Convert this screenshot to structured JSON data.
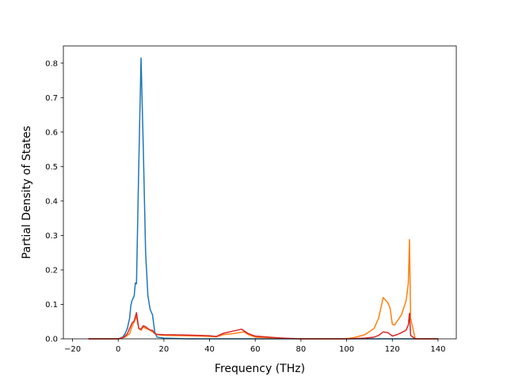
{
  "chart_data": {
    "type": "line",
    "title": "",
    "xlabel": "Frequency (THz)",
    "ylabel": "Partial Density of States",
    "xlim": [
      -24,
      148
    ],
    "ylim": [
      0,
      0.85
    ],
    "xticks": [
      -20,
      0,
      20,
      40,
      60,
      80,
      100,
      120,
      140
    ],
    "yticks": [
      0.0,
      0.1,
      0.2,
      0.3,
      0.4,
      0.5,
      0.6,
      0.7,
      0.8
    ],
    "xtick_labels": [
      "−20",
      "0",
      "20",
      "40",
      "60",
      "80",
      "100",
      "120",
      "140"
    ],
    "ytick_labels": [
      "0.0",
      "0.1",
      "0.2",
      "0.3",
      "0.4",
      "0.5",
      "0.6",
      "0.7",
      "0.8"
    ],
    "grid": false,
    "legend": false,
    "series": [
      {
        "color": "#1f77b4",
        "x": [
          -13,
          0,
          2,
          3,
          4,
          5,
          5.5,
          6,
          7,
          7.5,
          8,
          9,
          10,
          11,
          12,
          13,
          14,
          15,
          16,
          17,
          20,
          25,
          30,
          140
        ],
        "y": [
          0,
          0,
          0.005,
          0.015,
          0.03,
          0.06,
          0.095,
          0.11,
          0.125,
          0.162,
          0.16,
          0.5,
          0.815,
          0.55,
          0.25,
          0.125,
          0.085,
          0.07,
          0.02,
          0.005,
          0.002,
          0.001,
          0,
          0
        ]
      },
      {
        "color": "#ff7f0e",
        "x": [
          -13,
          0,
          3,
          5,
          6,
          8,
          9,
          10,
          11,
          12,
          13,
          14,
          15,
          17,
          20,
          30,
          40,
          43,
          46,
          50,
          55,
          57,
          60,
          70,
          75,
          80,
          100,
          104,
          108,
          112,
          114,
          116,
          118,
          119,
          120,
          121,
          122,
          124,
          126,
          127,
          127.5,
          128,
          130,
          140
        ],
        "y": [
          0,
          0,
          0.005,
          0.015,
          0.035,
          0.065,
          0.03,
          0.025,
          0.035,
          0.03,
          0.028,
          0.025,
          0.02,
          0.012,
          0.01,
          0.009,
          0.007,
          0.006,
          0.012,
          0.015,
          0.02,
          0.012,
          0.005,
          0.002,
          0.001,
          0,
          0,
          0.005,
          0.012,
          0.03,
          0.06,
          0.12,
          0.105,
          0.09,
          0.042,
          0.04,
          0.05,
          0.07,
          0.11,
          0.16,
          0.288,
          0.06,
          0,
          0
        ]
      },
      {
        "color": "#d62728",
        "x": [
          -13,
          0,
          2,
          3,
          4,
          5,
          6,
          7,
          8,
          9,
          10,
          11,
          12,
          13,
          14,
          15,
          16,
          17,
          20,
          30,
          40,
          43,
          46,
          50,
          54,
          57,
          60,
          70,
          75,
          80,
          100,
          108,
          112,
          114,
          116,
          118,
          120,
          122,
          124,
          126,
          127,
          127.5,
          128,
          130,
          140
        ],
        "y": [
          0,
          0,
          0.003,
          0.008,
          0.015,
          0.03,
          0.045,
          0.052,
          0.076,
          0.03,
          0.028,
          0.038,
          0.035,
          0.03,
          0.025,
          0.025,
          0.015,
          0.013,
          0.012,
          0.011,
          0.009,
          0.007,
          0.016,
          0.022,
          0.028,
          0.015,
          0.008,
          0.003,
          0.001,
          0,
          0,
          0.002,
          0.005,
          0.01,
          0.02,
          0.018,
          0.008,
          0.012,
          0.018,
          0.025,
          0.04,
          0.074,
          0.01,
          0,
          0
        ]
      }
    ]
  }
}
